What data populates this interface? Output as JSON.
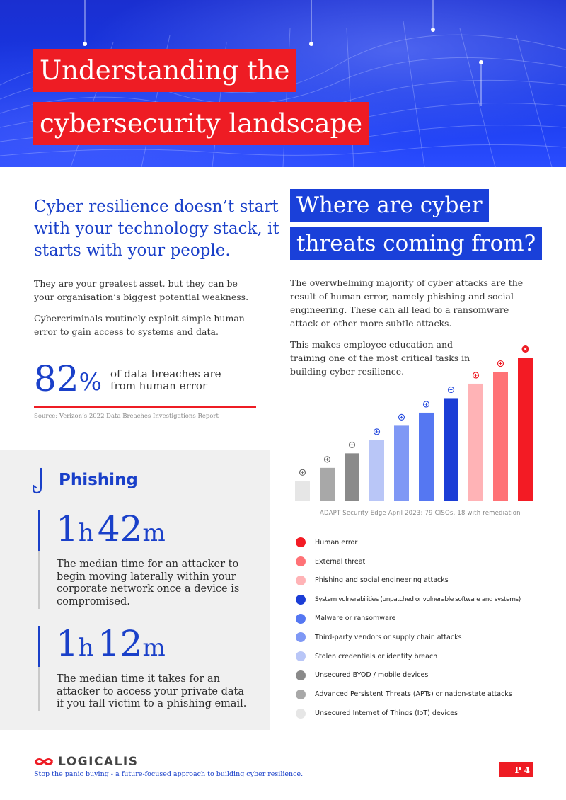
{
  "header": {
    "title_line1": "Understanding the",
    "title_line2": "cybersecurity landscape"
  },
  "intro": {
    "heading": "Cyber resilience doesn’t start with your technology stack, it starts with your people.",
    "p1": "They are your greatest asset, but they can be your organisation’s biggest potential weakness.",
    "p2": "Cybercriminals routinely exploit simple human error to gain access to systems and data.",
    "stat_value": "82",
    "stat_unit": "%",
    "stat_text": "of data breaches are from human error",
    "source": "Source: Verizon’s 2022 Data Breaches Investigations Report"
  },
  "phishing": {
    "title": "Phishing",
    "stat1": {
      "h_num": "1",
      "h_unit": "h",
      "m_num": "42",
      "m_unit": "m",
      "desc": "The median time for an attacker to begin moving laterally within your corporate network once a device is compromised."
    },
    "stat2": {
      "h_num": "1",
      "h_unit": "h",
      "m_num": "12",
      "m_unit": "m",
      "desc": "The median time it takes for an attacker to access your private data if you fall victim to a phishing email."
    }
  },
  "threats": {
    "title_line1": "Where are cyber",
    "title_line2": "threats coming from?",
    "p1": "The overwhelming majority of cyber attacks are the result of human error, namely phishing and social engineering. These can all lead to a ransomware attack or other more subtle attacks.",
    "p2": "This makes employee education and training one of the most critical tasks in building cyber resilience.",
    "caption": "ADAPT Security Edge April 2023: 79 CISOs, 18 with remediation"
  },
  "chart_data": {
    "type": "bar",
    "categories": [
      "Unsecured Internet of Things (IoT) devices",
      "Advanced Persistent Threats (APTs) or nation-state attacks",
      "Unsecured BYOD / mobile devices",
      "Stolen credentials or identity breach",
      "Third-party vendors or supply chain attacks",
      "Malware or ransomware",
      "System vulnerabilities (unpatched or vulnerable software and systems)",
      "Phishing and social engineering attacks",
      "External threat",
      "Human error"
    ],
    "values": [
      1.4,
      2.3,
      3.3,
      4.2,
      5.2,
      6.1,
      7.1,
      8.1,
      8.9,
      9.9
    ],
    "colors": [
      "#e6e6e6",
      "#a8a8a8",
      "#8a8a8a",
      "#b9c6f7",
      "#7f98f5",
      "#5577f2",
      "#1b3dd6",
      "#ffb3b6",
      "#ff7276",
      "#f31b24"
    ],
    "icons": [
      "router-icon",
      "hacker-icon",
      "mobile-icon",
      "id-card-icon",
      "link-icon",
      "bug-icon",
      "monitor-icon",
      "hook-icon",
      "intruder-icon",
      "error-icon"
    ],
    "ylim": [
      0,
      10
    ],
    "legend_position": "below",
    "grid": false
  },
  "legend": [
    {
      "label": "Human error",
      "color": "#f31b24"
    },
    {
      "label": "External threat",
      "color": "#ff7276"
    },
    {
      "label": "Phishing and social engineering attacks",
      "color": "#ffb3b6"
    },
    {
      "label": "System vulnerabilities (unpatched or vulnerable software and systems)",
      "color": "#1b3dd6"
    },
    {
      "label": "Malware or ransomware",
      "color": "#5577f2"
    },
    {
      "label": "Third-party vendors or supply chain attacks",
      "color": "#7f98f5"
    },
    {
      "label": "Stolen credentials or identity breach",
      "color": "#b9c6f7"
    },
    {
      "label": "Unsecured BYOD / mobile devices",
      "color": "#8a8a8a"
    },
    {
      "label": "Advanced Persistent Threats (APTs) or nation-state attacks",
      "color": "#a8a8a8"
    },
    {
      "label": "Unsecured Internet of Things (IoT) devices",
      "color": "#e6e6e6"
    }
  ],
  "footer": {
    "logo_text": "LOGICALIS",
    "tagline": "Stop the panic buying - a future-focused approach to building cyber resilience.",
    "page": "P 4"
  }
}
